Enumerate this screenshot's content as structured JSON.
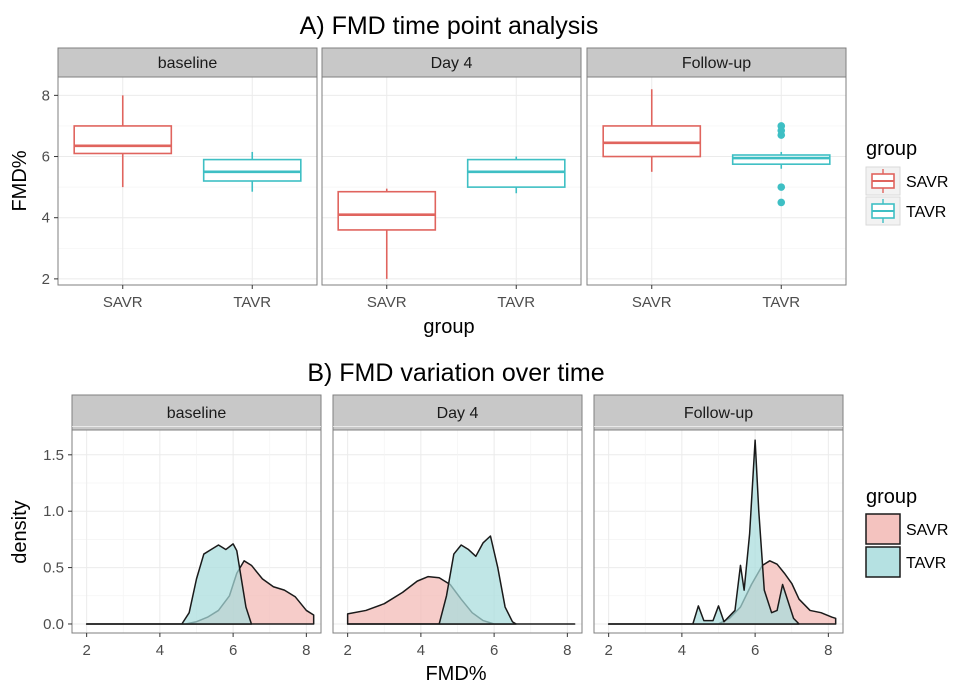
{
  "colors": {
    "savr": "#e0645e",
    "tavr": "#3ebfc4",
    "savr_fill": "#f2b8b4",
    "tavr_fill": "#a8dcdd",
    "strip_bg": "#c8c8c8",
    "panel_border": "#7f7f7f",
    "grid": "#ebebeb"
  },
  "chart_data": [
    {
      "type": "box",
      "title": "A) FMD time point analysis",
      "xlabel": "group",
      "ylabel": "FMD%",
      "ylim": [
        1.8,
        8.6
      ],
      "yticks": [
        "2",
        "4",
        "6",
        "8"
      ],
      "categories": [
        "SAVR",
        "TAVR"
      ],
      "grid": true,
      "facets": [
        "baseline",
        "Day 4",
        "Follow-up"
      ],
      "boxes": [
        {
          "facet": "baseline",
          "group": "SAVR",
          "whisker_low": 5.0,
          "q1": 6.1,
          "median": 6.35,
          "q3": 7.0,
          "whisker_high": 8.0,
          "outliers": []
        },
        {
          "facet": "baseline",
          "group": "TAVR",
          "whisker_low": 4.85,
          "q1": 5.2,
          "median": 5.5,
          "q3": 5.9,
          "whisker_high": 6.15,
          "outliers": []
        },
        {
          "facet": "Day 4",
          "group": "SAVR",
          "whisker_low": 2.0,
          "q1": 3.6,
          "median": 4.1,
          "q3": 4.85,
          "whisker_high": 4.95,
          "outliers": []
        },
        {
          "facet": "Day 4",
          "group": "TAVR",
          "whisker_low": 4.8,
          "q1": 5.0,
          "median": 5.5,
          "q3": 5.9,
          "whisker_high": 6.0,
          "outliers": []
        },
        {
          "facet": "Follow-up",
          "group": "SAVR",
          "whisker_low": 5.5,
          "q1": 6.0,
          "median": 6.45,
          "q3": 7.0,
          "whisker_high": 8.2,
          "outliers": []
        },
        {
          "facet": "Follow-up",
          "group": "TAVR",
          "whisker_low": 5.6,
          "q1": 5.75,
          "median": 5.95,
          "q3": 6.05,
          "whisker_high": 6.15,
          "outliers": [
            7.0,
            6.85,
            6.7,
            5.0,
            4.5
          ]
        }
      ],
      "legend": {
        "title": "group",
        "entries": [
          "SAVR",
          "TAVR"
        ],
        "placement": "right"
      }
    },
    {
      "type": "area",
      "title": "B) FMD variation over time",
      "xlabel": "FMD%",
      "ylabel": "density",
      "xlim": [
        1.6,
        8.4
      ],
      "ylim": [
        -0.08,
        1.72
      ],
      "xticks": [
        "2",
        "4",
        "6",
        "8"
      ],
      "yticks": [
        "0.0",
        "0.5",
        "1.0",
        "1.5"
      ],
      "grid": true,
      "facets": [
        "baseline",
        "Day 4",
        "Follow-up"
      ],
      "series": [
        {
          "facet": "baseline",
          "group": "SAVR",
          "points": [
            [
              2,
              0
            ],
            [
              4.7,
              0
            ],
            [
              5.0,
              0.02
            ],
            [
              5.3,
              0.06
            ],
            [
              5.6,
              0.12
            ],
            [
              5.9,
              0.25
            ],
            [
              6.1,
              0.45
            ],
            [
              6.3,
              0.56
            ],
            [
              6.5,
              0.52
            ],
            [
              6.8,
              0.4
            ],
            [
              7.1,
              0.33
            ],
            [
              7.4,
              0.3
            ],
            [
              7.7,
              0.24
            ],
            [
              8.0,
              0.12
            ],
            [
              8.2,
              0.08
            ]
          ]
        },
        {
          "facet": "baseline",
          "group": "TAVR",
          "points": [
            [
              2,
              0
            ],
            [
              4.6,
              0
            ],
            [
              4.8,
              0.1
            ],
            [
              5.0,
              0.4
            ],
            [
              5.2,
              0.62
            ],
            [
              5.4,
              0.66
            ],
            [
              5.6,
              0.7
            ],
            [
              5.8,
              0.66
            ],
            [
              6.0,
              0.71
            ],
            [
              6.1,
              0.65
            ],
            [
              6.2,
              0.45
            ],
            [
              6.35,
              0.15
            ],
            [
              6.5,
              0
            ]
          ]
        },
        {
          "facet": "Day 4",
          "group": "SAVR",
          "points": [
            [
              2,
              0.09
            ],
            [
              2.5,
              0.12
            ],
            [
              3.0,
              0.18
            ],
            [
              3.5,
              0.28
            ],
            [
              3.9,
              0.38
            ],
            [
              4.2,
              0.42
            ],
            [
              4.5,
              0.41
            ],
            [
              4.8,
              0.35
            ],
            [
              5.1,
              0.22
            ],
            [
              5.4,
              0.1
            ],
            [
              5.7,
              0.03
            ],
            [
              6.0,
              0
            ],
            [
              8.2,
              0
            ]
          ]
        },
        {
          "facet": "Day 4",
          "group": "TAVR",
          "points": [
            [
              2,
              0
            ],
            [
              4.5,
              0
            ],
            [
              4.7,
              0.25
            ],
            [
              4.9,
              0.62
            ],
            [
              5.1,
              0.7
            ],
            [
              5.3,
              0.66
            ],
            [
              5.5,
              0.6
            ],
            [
              5.7,
              0.72
            ],
            [
              5.9,
              0.78
            ],
            [
              6.1,
              0.5
            ],
            [
              6.3,
              0.15
            ],
            [
              6.5,
              0.02
            ],
            [
              6.6,
              0
            ]
          ]
        },
        {
          "facet": "Follow-up",
          "group": "SAVR",
          "points": [
            [
              2,
              0
            ],
            [
              5.0,
              0
            ],
            [
              5.3,
              0.05
            ],
            [
              5.6,
              0.15
            ],
            [
              5.9,
              0.35
            ],
            [
              6.2,
              0.52
            ],
            [
              6.4,
              0.56
            ],
            [
              6.6,
              0.53
            ],
            [
              6.8,
              0.45
            ],
            [
              7.0,
              0.36
            ],
            [
              7.2,
              0.22
            ],
            [
              7.5,
              0.12
            ],
            [
              7.8,
              0.1
            ],
            [
              8.1,
              0.06
            ],
            [
              8.2,
              0.05
            ]
          ]
        },
        {
          "facet": "Follow-up",
          "group": "TAVR",
          "points": [
            [
              2,
              0
            ],
            [
              4.3,
              0
            ],
            [
              4.45,
              0.16
            ],
            [
              4.6,
              0.03
            ],
            [
              4.85,
              0.03
            ],
            [
              5.0,
              0.16
            ],
            [
              5.15,
              0.02
            ],
            [
              5.45,
              0.12
            ],
            [
              5.6,
              0.52
            ],
            [
              5.7,
              0.3
            ],
            [
              5.85,
              0.8
            ],
            [
              6.0,
              1.63
            ],
            [
              6.1,
              1.0
            ],
            [
              6.25,
              0.3
            ],
            [
              6.45,
              0.1
            ],
            [
              6.6,
              0.12
            ],
            [
              6.75,
              0.35
            ],
            [
              6.9,
              0.2
            ],
            [
              7.05,
              0.05
            ],
            [
              7.2,
              0
            ]
          ]
        }
      ],
      "legend": {
        "title": "group",
        "entries": [
          "SAVR",
          "TAVR"
        ],
        "placement": "right"
      }
    }
  ]
}
